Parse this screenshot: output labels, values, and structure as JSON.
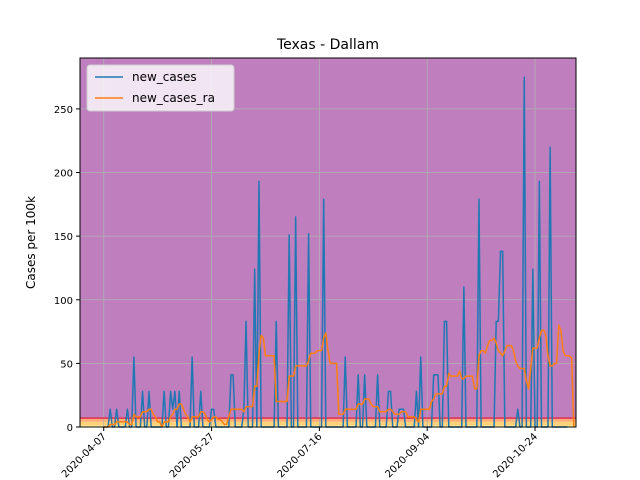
{
  "chart_data": {
    "type": "line",
    "title": "Texas - Dallam",
    "xlabel": "",
    "ylabel": "Cases per 100k",
    "x_tick_labels": [
      "2020-04-07",
      "2020-05-27",
      "2020-07-16",
      "2020-09-04",
      "2020-10-24"
    ],
    "y_tick_labels": [
      "0",
      "50",
      "100",
      "150",
      "200",
      "250"
    ],
    "xlim": [
      "2020-03-27",
      "2020-11-12"
    ],
    "ylim": [
      0,
      290
    ],
    "grid": true,
    "legend_position": "top-left",
    "background_bands": [
      {
        "from": 0,
        "to": 1,
        "color": "#ffff99"
      },
      {
        "from": 1,
        "to": 4,
        "color": "#ffd27a"
      },
      {
        "from": 4,
        "to": 7,
        "color": "#ffb07a"
      },
      {
        "from": 7,
        "to": 290,
        "color": "#bf7fbf"
      }
    ],
    "threshold_line": {
      "y": 7,
      "color": "#e0304c"
    },
    "series": [
      {
        "name": "new_cases",
        "color": "#1f77b4",
        "start_date": "2020-04-07",
        "values": [
          0,
          0,
          0,
          14,
          0,
          0,
          14,
          0,
          0,
          0,
          0,
          14,
          0,
          0,
          55,
          0,
          0,
          0,
          28,
          0,
          0,
          28,
          0,
          0,
          0,
          0,
          0,
          0,
          28,
          0,
          0,
          28,
          14,
          28,
          0,
          28,
          0,
          0,
          0,
          0,
          0,
          55,
          0,
          0,
          0,
          28,
          0,
          0,
          0,
          0,
          14,
          14,
          0,
          0,
          0,
          0,
          0,
          0,
          0,
          41,
          41,
          0,
          0,
          0,
          0,
          14,
          83,
          0,
          0,
          0,
          124,
          0,
          193,
          0,
          0,
          0,
          0,
          0,
          0,
          0,
          83,
          0,
          0,
          0,
          0,
          0,
          151,
          0,
          0,
          165,
          0,
          0,
          0,
          0,
          0,
          152,
          0,
          0,
          0,
          0,
          0,
          0,
          179,
          0,
          0,
          0,
          0,
          0,
          0,
          0,
          0,
          0,
          55,
          0,
          0,
          0,
          0,
          0,
          41,
          0,
          0,
          41,
          0,
          0,
          0,
          0,
          0,
          41,
          0,
          0,
          0,
          0,
          28,
          28,
          0,
          0,
          0,
          14,
          14,
          14,
          0,
          0,
          0,
          0,
          0,
          28,
          0,
          55,
          0,
          0,
          0,
          0,
          0,
          41,
          41,
          41,
          0,
          0,
          83,
          83,
          0,
          0,
          0,
          0,
          0,
          0,
          0,
          110,
          0,
          0,
          0,
          0,
          0,
          0,
          179,
          0,
          0,
          0,
          0,
          0,
          0,
          0,
          83,
          83,
          138,
          138,
          0,
          0,
          0,
          0,
          0,
          0,
          14,
          0,
          0,
          275,
          0,
          0,
          0,
          124,
          0,
          0,
          193,
          0,
          0,
          0,
          0,
          220,
          0,
          0,
          0,
          0,
          0,
          0,
          0,
          0
        ]
      },
      {
        "name": "new_cases_ra",
        "color": "#ff7f0e",
        "start_date": "2020-04-07",
        "values": [
          0,
          0,
          0,
          2,
          2,
          2,
          4,
          4,
          4,
          4,
          4,
          4,
          2,
          2,
          10,
          8,
          8,
          8,
          12,
          12,
          12,
          14,
          14,
          10,
          8,
          4,
          4,
          0,
          4,
          4,
          4,
          8,
          10,
          14,
          14,
          18,
          18,
          14,
          10,
          8,
          4,
          8,
          8,
          8,
          8,
          12,
          12,
          10,
          6,
          4,
          6,
          8,
          8,
          6,
          6,
          4,
          2,
          2,
          8,
          14,
          14,
          14,
          14,
          14,
          14,
          12,
          16,
          16,
          16,
          16,
          32,
          32,
          58,
          72,
          70,
          56,
          56,
          56,
          56,
          56,
          20,
          20,
          20,
          20,
          20,
          20,
          40,
          40,
          40,
          48,
          48,
          48,
          48,
          48,
          48,
          52,
          58,
          58,
          58,
          60,
          60,
          60,
          70,
          74,
          60,
          50,
          50,
          50,
          50,
          10,
          10,
          10,
          14,
          14,
          14,
          14,
          14,
          14,
          18,
          18,
          18,
          22,
          22,
          22,
          18,
          16,
          16,
          16,
          12,
          12,
          12,
          12,
          14,
          14,
          12,
          10,
          10,
          10,
          12,
          12,
          12,
          8,
          8,
          8,
          8,
          6,
          4,
          14,
          14,
          14,
          14,
          14,
          20,
          22,
          26,
          26,
          26,
          26,
          32,
          32,
          42,
          40,
          40,
          40,
          40,
          44,
          38,
          38,
          40,
          40,
          40,
          40,
          30,
          30,
          56,
          60,
          60,
          58,
          64,
          68,
          68,
          70,
          66,
          60,
          58,
          56,
          60,
          64,
          64,
          64,
          60,
          52,
          48,
          46,
          46,
          46,
          36,
          30,
          46,
          62,
          62,
          62,
          70,
          76,
          76,
          72,
          56,
          48,
          48,
          50,
          50,
          80,
          76,
          60,
          56,
          56,
          56,
          54,
          0
        ]
      }
    ]
  }
}
